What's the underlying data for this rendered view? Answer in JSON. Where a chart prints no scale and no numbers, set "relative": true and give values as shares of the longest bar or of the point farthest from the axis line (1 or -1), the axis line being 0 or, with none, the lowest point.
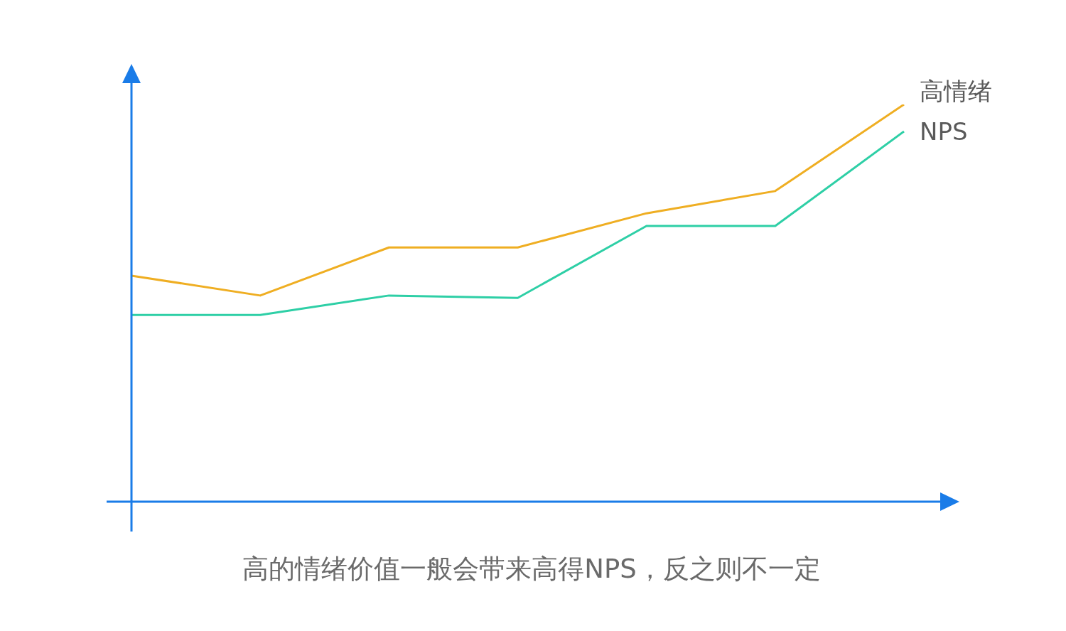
{
  "chart_data": {
    "type": "line",
    "relative": true,
    "categories": [
      null,
      null,
      null,
      null,
      null,
      null,
      null
    ],
    "series": [
      {
        "name": "高情绪",
        "color": "#efae22",
        "values": [
          0.569,
          0.519,
          0.64,
          0.64,
          0.726,
          0.782,
          1
        ]
      },
      {
        "name": "NPS",
        "color": "#2ecfa6",
        "values": [
          0.47,
          0.47,
          0.519,
          0.513,
          0.694,
          0.694,
          0.932
        ]
      }
    ],
    "annotations": [
      "高的情绪价值一般会带来高得NPS，反之则不一定"
    ],
    "legend": false,
    "marker": "none",
    "line_style": "solid"
  }
}
